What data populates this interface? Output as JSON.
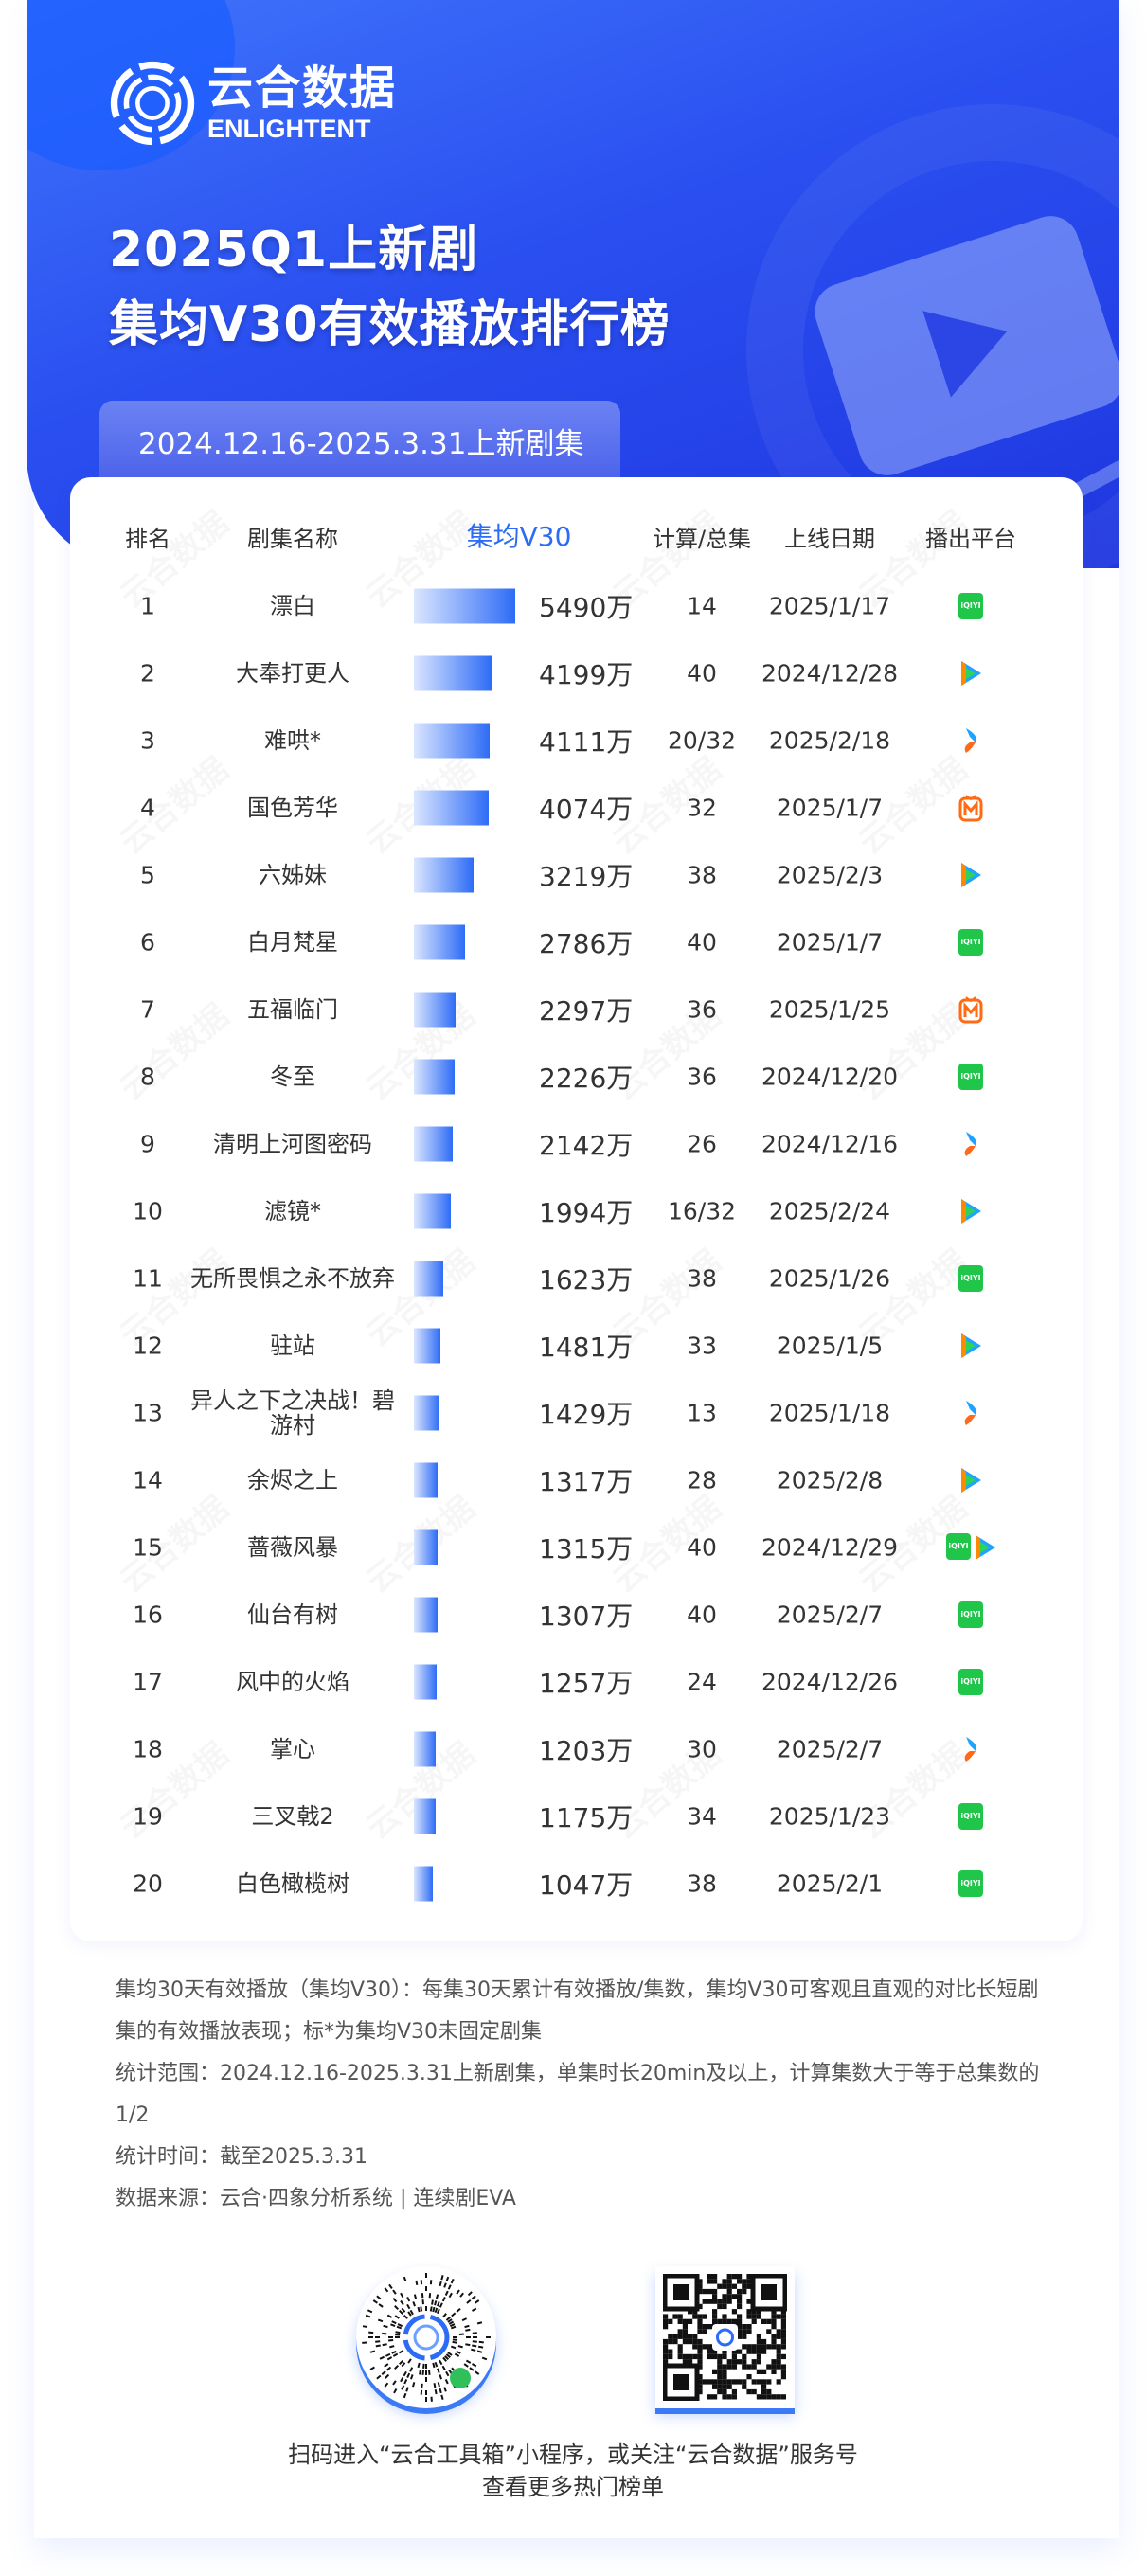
{
  "brand": {
    "name_cn": "云合数据",
    "name_en": "ENLIGHTENT"
  },
  "title": {
    "line1": "2025Q1上新剧",
    "line2": "集均V30有效播放排行榜"
  },
  "period_label": "2024.12.16-2025.3.31上新剧集",
  "table": {
    "headers": {
      "rank": "排名",
      "name": "剧集名称",
      "v30": "集均V30",
      "episodes": "计算/总集",
      "date": "上线日期",
      "platform": "播出平台"
    },
    "rows": [
      {
        "rank": "1",
        "name": "漂白",
        "v30": 5490,
        "v30_label": "5490万",
        "episodes": "14",
        "date": "2025/1/17",
        "platforms": [
          "iqiyi"
        ]
      },
      {
        "rank": "2",
        "name": "大奉打更人",
        "v30": 4199,
        "v30_label": "4199万",
        "episodes": "40",
        "date": "2024/12/28",
        "platforms": [
          "tencent"
        ]
      },
      {
        "rank": "3",
        "name": "难哄*",
        "v30": 4111,
        "v30_label": "4111万",
        "episodes": "20/32",
        "date": "2025/2/18",
        "platforms": [
          "youku"
        ]
      },
      {
        "rank": "4",
        "name": "国色芳华",
        "v30": 4074,
        "v30_label": "4074万",
        "episodes": "32",
        "date": "2025/1/7",
        "platforms": [
          "mango"
        ]
      },
      {
        "rank": "5",
        "name": "六姊妹",
        "v30": 3219,
        "v30_label": "3219万",
        "episodes": "38",
        "date": "2025/2/3",
        "platforms": [
          "tencent"
        ]
      },
      {
        "rank": "6",
        "name": "白月梵星",
        "v30": 2786,
        "v30_label": "2786万",
        "episodes": "40",
        "date": "2025/1/7",
        "platforms": [
          "iqiyi"
        ]
      },
      {
        "rank": "7",
        "name": "五福临门",
        "v30": 2297,
        "v30_label": "2297万",
        "episodes": "36",
        "date": "2025/1/25",
        "platforms": [
          "mango"
        ]
      },
      {
        "rank": "8",
        "name": "冬至",
        "v30": 2226,
        "v30_label": "2226万",
        "episodes": "36",
        "date": "2024/12/20",
        "platforms": [
          "iqiyi"
        ]
      },
      {
        "rank": "9",
        "name": "清明上河图密码",
        "v30": 2142,
        "v30_label": "2142万",
        "episodes": "26",
        "date": "2024/12/16",
        "platforms": [
          "youku"
        ]
      },
      {
        "rank": "10",
        "name": "滤镜*",
        "v30": 1994,
        "v30_label": "1994万",
        "episodes": "16/32",
        "date": "2025/2/24",
        "platforms": [
          "tencent"
        ]
      },
      {
        "rank": "11",
        "name": "无所畏惧之永不放弃",
        "v30": 1623,
        "v30_label": "1623万",
        "episodes": "38",
        "date": "2025/1/26",
        "platforms": [
          "iqiyi"
        ]
      },
      {
        "rank": "12",
        "name": "驻站",
        "v30": 1481,
        "v30_label": "1481万",
        "episodes": "33",
        "date": "2025/1/5",
        "platforms": [
          "tencent"
        ]
      },
      {
        "rank": "13",
        "name": "异人之下之决战！碧游村",
        "v30": 1429,
        "v30_label": "1429万",
        "episodes": "13",
        "date": "2025/1/18",
        "platforms": [
          "youku"
        ]
      },
      {
        "rank": "14",
        "name": "余烬之上",
        "v30": 1317,
        "v30_label": "1317万",
        "episodes": "28",
        "date": "2025/2/8",
        "platforms": [
          "tencent"
        ]
      },
      {
        "rank": "15",
        "name": "蔷薇风暴",
        "v30": 1315,
        "v30_label": "1315万",
        "episodes": "40",
        "date": "2024/12/29",
        "platforms": [
          "iqiyi",
          "tencent"
        ]
      },
      {
        "rank": "16",
        "name": "仙台有树",
        "v30": 1307,
        "v30_label": "1307万",
        "episodes": "40",
        "date": "2025/2/7",
        "platforms": [
          "iqiyi"
        ]
      },
      {
        "rank": "17",
        "name": "风中的火焰",
        "v30": 1257,
        "v30_label": "1257万",
        "episodes": "24",
        "date": "2024/12/26",
        "platforms": [
          "iqiyi"
        ]
      },
      {
        "rank": "18",
        "name": "掌心",
        "v30": 1203,
        "v30_label": "1203万",
        "episodes": "30",
        "date": "2025/2/7",
        "platforms": [
          "youku"
        ]
      },
      {
        "rank": "19",
        "name": "三叉戟2",
        "v30": 1175,
        "v30_label": "1175万",
        "episodes": "34",
        "date": "2025/1/23",
        "platforms": [
          "iqiyi"
        ]
      },
      {
        "rank": "20",
        "name": "白色橄榄树",
        "v30": 1047,
        "v30_label": "1047万",
        "episodes": "38",
        "date": "2025/2/1",
        "platforms": [
          "iqiyi"
        ]
      }
    ]
  },
  "platform_labels": {
    "iqiyi": "iQIYI"
  },
  "notes": [
    "集均30天有效播放（集均V30）：每集30天累计有效播放/集数，集均V30可客观且直观的对比长短剧集的有效播放表现；标*为集均V30未固定剧集",
    "统计范围：2024.12.16-2025.3.31上新剧集，单集时长20min及以上，计算集数大于等于总集数的1/2",
    "统计时间：截至2025.3.31",
    "数据来源：云合·四象分析系统 | 连续剧EVA"
  ],
  "footer": {
    "line1": "扫码进入“云合工具箱”小程序，或关注“云合数据”服务号",
    "line2": "查看更多热门榜单"
  },
  "colors": {
    "brand_blue": "#2b4ff0",
    "accent": "#2b6bf5",
    "iqiyi": "#1fc64a",
    "mango": "#ff6a13",
    "youku_blue": "#1fa3ff",
    "youku_orange": "#ff6a1a"
  }
}
